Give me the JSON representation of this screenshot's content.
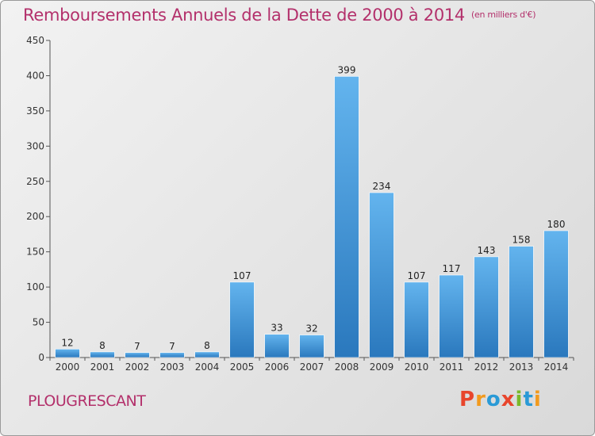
{
  "title": "Remboursements Annuels de la Dette de 2000 à 2014",
  "unit": "(en milliers d'€)",
  "place": "PLOUGRESCANT",
  "logo": {
    "text": "Proxiti",
    "colors": [
      "#e8452c",
      "#f29a1e",
      "#2a9ad6",
      "#e8452c",
      "#7ab929",
      "#2a9ad6",
      "#f29a1e"
    ]
  },
  "colors": {
    "title": "#b3306b",
    "bar_top": "#63b4ee",
    "bar_bottom": "#2a78bd"
  },
  "chart_data": {
    "type": "bar",
    "categories": [
      "2000",
      "2001",
      "2002",
      "2003",
      "2004",
      "2005",
      "2006",
      "2007",
      "2008",
      "2009",
      "2010",
      "2011",
      "2012",
      "2013",
      "2014"
    ],
    "values": [
      12,
      8,
      7,
      7,
      8,
      107,
      33,
      32,
      399,
      234,
      107,
      117,
      143,
      158,
      180
    ],
    "ylim": [
      0,
      450
    ],
    "yticks": [
      0,
      50,
      100,
      150,
      200,
      250,
      300,
      350,
      400,
      450
    ],
    "grid": false
  }
}
